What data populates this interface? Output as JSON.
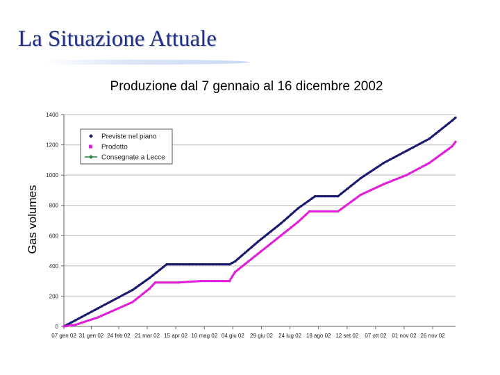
{
  "slide": {
    "title": "La Situazione Attuale"
  },
  "chart_data": {
    "type": "line",
    "title": "Produzione dal 7 gennaio al 16 dicembre 2002",
    "xlabel": "",
    "ylabel": "Gas volumes",
    "ylim": [
      0,
      1400
    ],
    "yticks": [
      0,
      200,
      400,
      600,
      800,
      1000,
      1200,
      1400
    ],
    "xlim": [
      0,
      343
    ],
    "xticks": [
      {
        "label": "07 gen 02",
        "x": 0
      },
      {
        "label": "31 gen 02",
        "x": 24
      },
      {
        "label": "24 feb 02",
        "x": 48
      },
      {
        "label": "21 mar 02",
        "x": 73
      },
      {
        "label": "15 apr 02",
        "x": 98
      },
      {
        "label": "10 mag 02",
        "x": 123
      },
      {
        "label": "04 giu 02",
        "x": 148
      },
      {
        "label": "29 giu 02",
        "x": 173
      },
      {
        "label": "24 lug 02",
        "x": 198
      },
      {
        "label": "18 ago 02",
        "x": 223
      },
      {
        "label": "12 set 02",
        "x": 248
      },
      {
        "label": "07 ott 02",
        "x": 273
      },
      {
        "label": "01 nov 02",
        "x": 298
      },
      {
        "label": "26 nov 02",
        "x": 323
      }
    ],
    "grid": true,
    "legend_position": "top-left",
    "series": [
      {
        "name": "Previste nel piano",
        "color": "#1a1a6e",
        "marker": "diamond",
        "x": [
          0,
          10,
          30,
          60,
          75,
          90,
          110,
          145,
          150,
          170,
          190,
          205,
          220,
          240,
          260,
          280,
          300,
          320,
          340,
          343
        ],
        "values": [
          0,
          40,
          120,
          240,
          320,
          410,
          410,
          410,
          430,
          560,
          680,
          780,
          860,
          860,
          980,
          1080,
          1160,
          1240,
          1360,
          1380
        ]
      },
      {
        "name": "Prodotto",
        "color": "#e020d8",
        "marker": "square",
        "x": [
          0,
          10,
          30,
          60,
          75,
          80,
          100,
          120,
          145,
          150,
          170,
          190,
          205,
          215,
          225,
          240,
          260,
          280,
          300,
          320,
          340,
          343
        ],
        "values": [
          0,
          10,
          60,
          160,
          250,
          290,
          290,
          300,
          300,
          360,
          480,
          600,
          690,
          760,
          760,
          760,
          870,
          940,
          1000,
          1080,
          1190,
          1220
        ]
      },
      {
        "name": "Consegnate a Lecce",
        "color": "#1f8a3a",
        "marker": "diamond",
        "x": [],
        "values": []
      }
    ]
  }
}
